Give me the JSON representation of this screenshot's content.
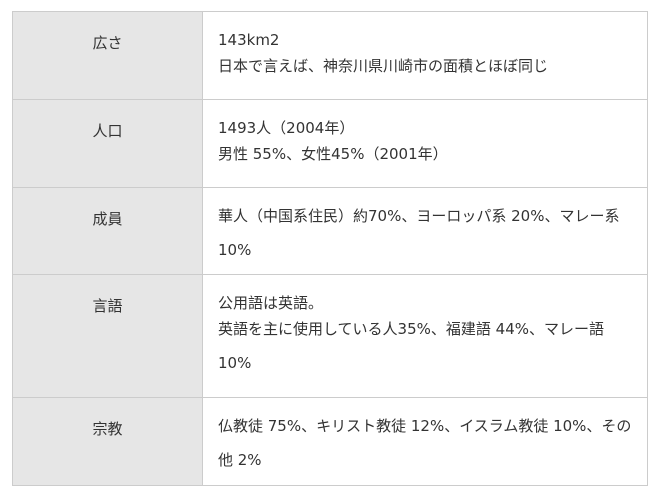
{
  "rows": [
    {
      "label": "広さ",
      "lines": [
        "143km2",
        "日本で言えば、神奈川県川崎市の面積とほぼ同じ"
      ]
    },
    {
      "label": "人口",
      "lines": [
        "1493人（2004年）",
        "男性 55%、女性45%（2001年）"
      ]
    },
    {
      "label": "成員",
      "lines": [
        "華人（中国系住民）約70%、ヨーロッパ系 20%、マレー系 10%"
      ]
    },
    {
      "label": "言語",
      "lines": [
        "公用語は英語。",
        "英語を主に使用している人35%、福建語 44%、マレー語 10%"
      ]
    },
    {
      "label": "宗教",
      "lines": [
        "仏教徒 75%、キリスト教徒 12%、イスラム教徒 10%、その他 2%"
      ]
    }
  ]
}
